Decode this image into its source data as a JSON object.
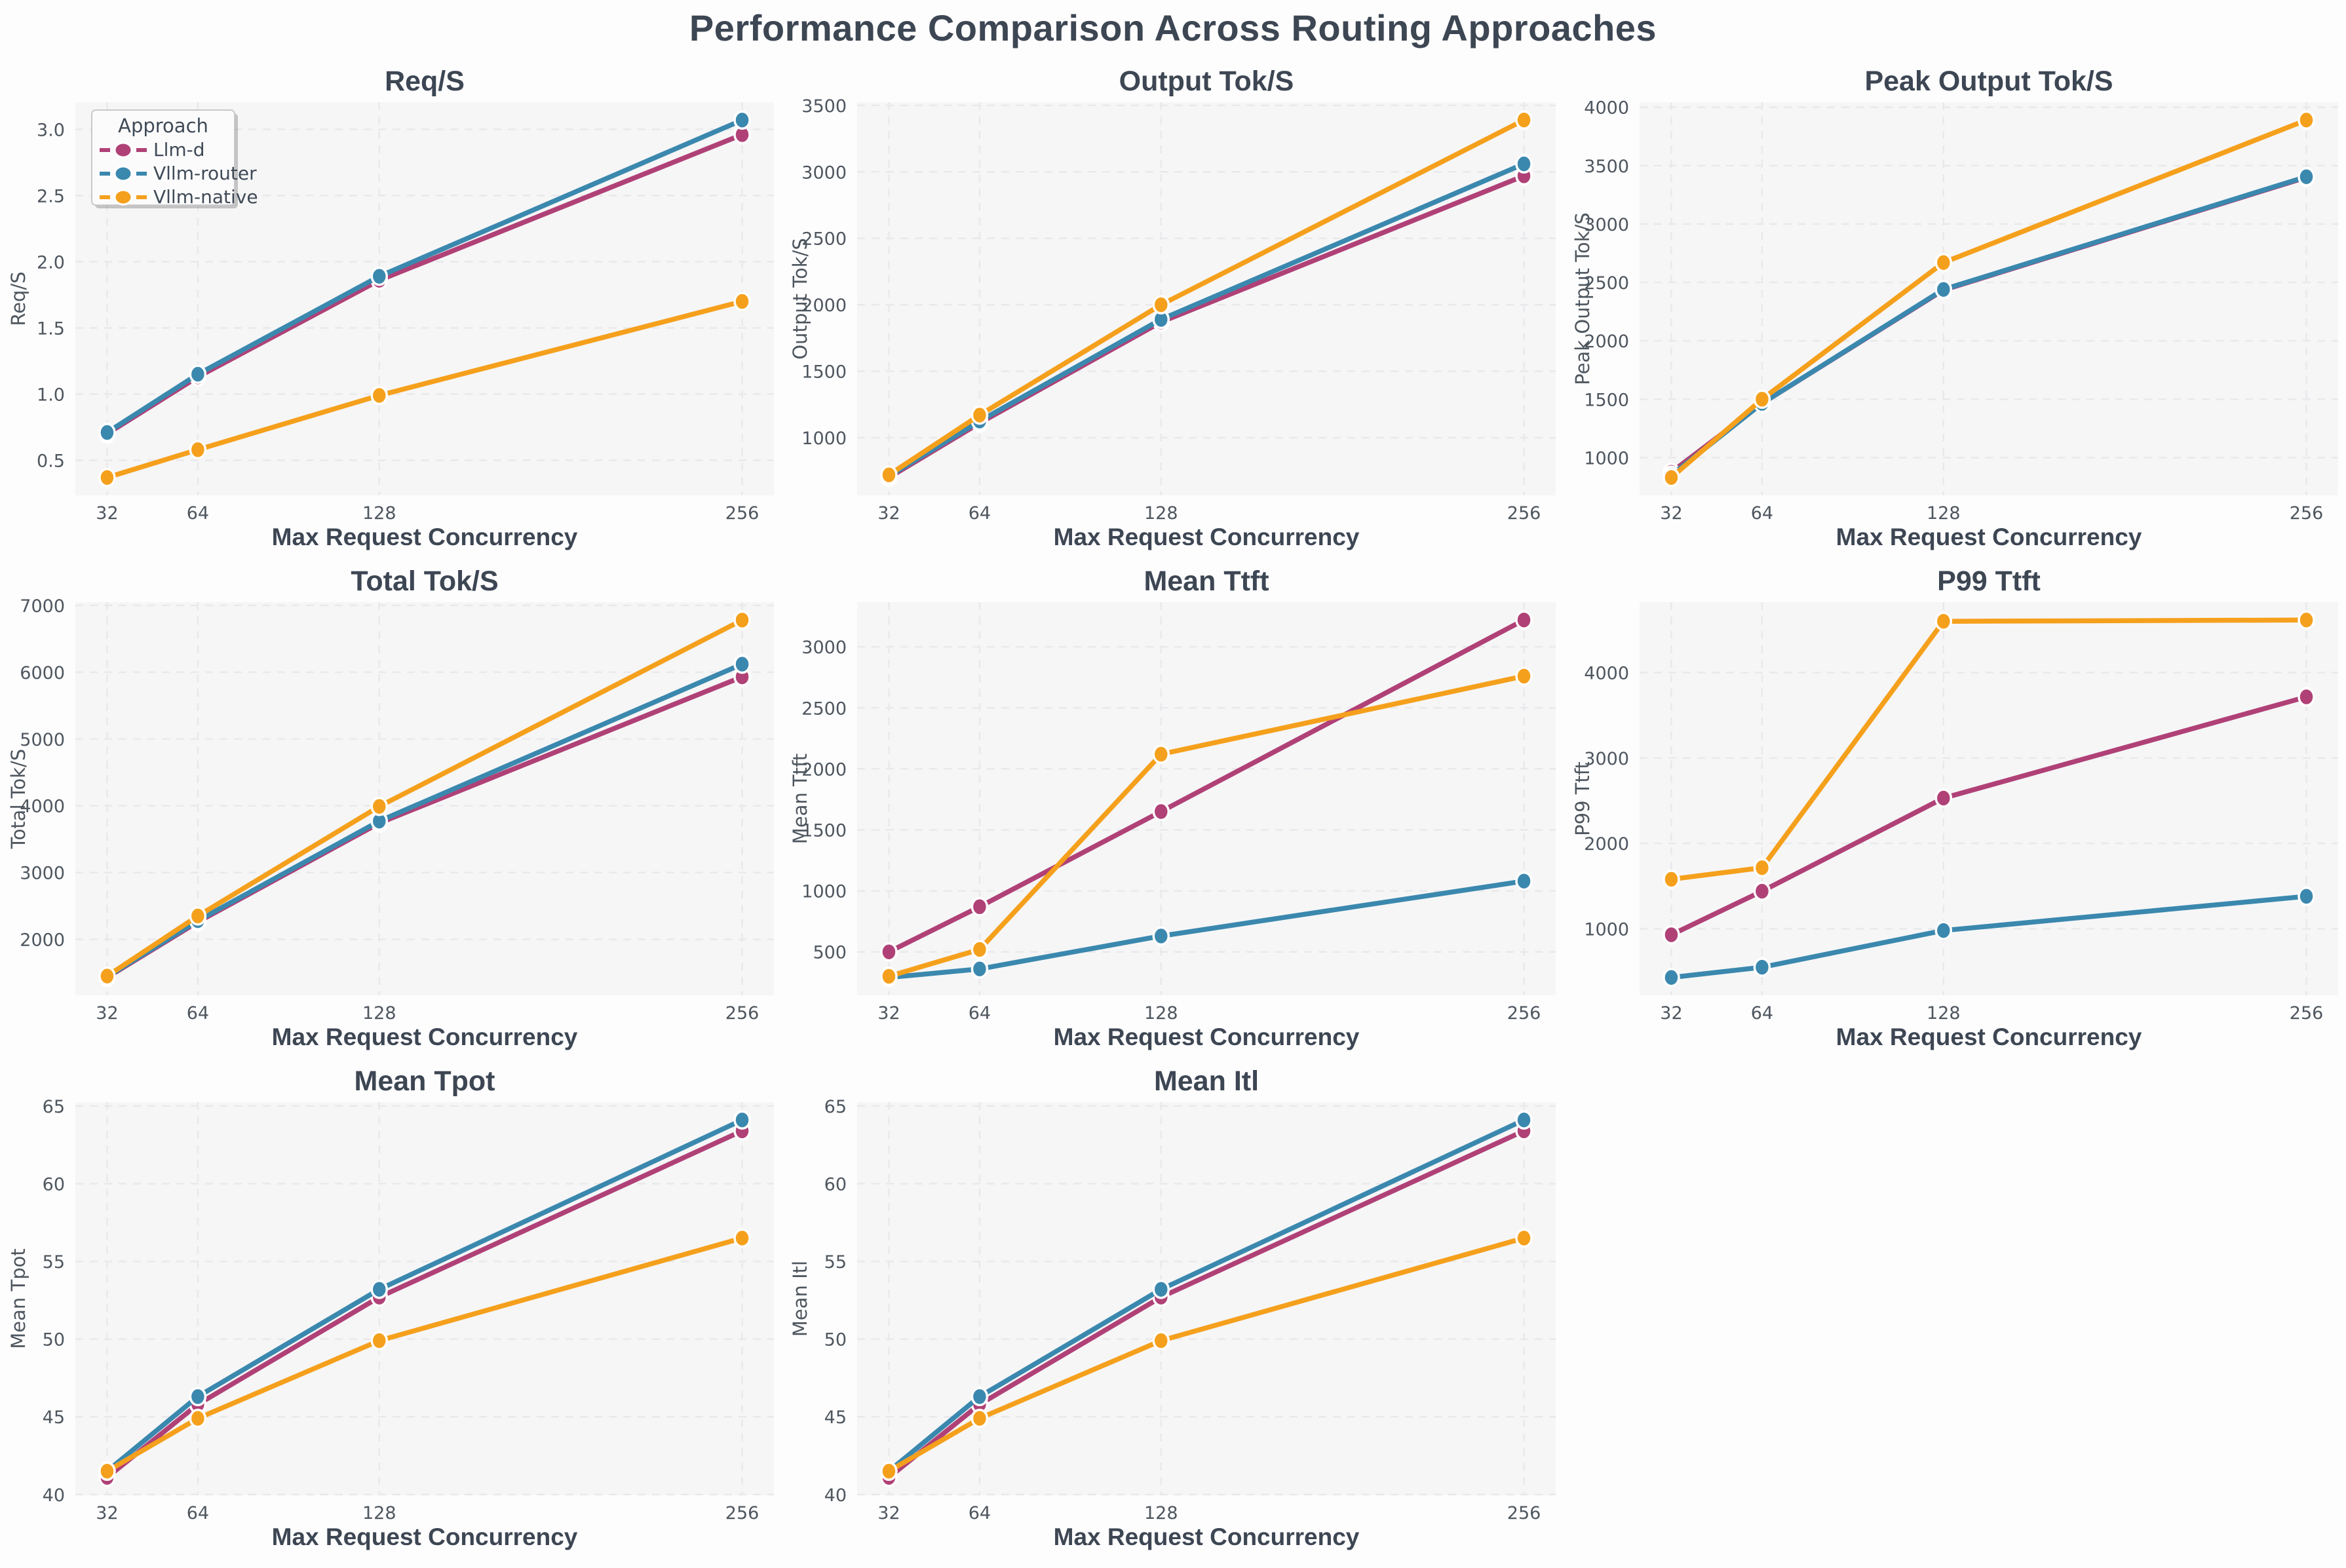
{
  "figure": {
    "title": "Performance Comparison Across Routing Approaches"
  },
  "style": {
    "figure_bg": "#fdfdfe",
    "plot_bg": "#f6f6f7",
    "grid_color": "#e9e9ec",
    "title_text": "#3d4653",
    "tick_text": "#4e565e",
    "legend_bg": "#fbfbfc",
    "legend_border": "#c9c9cc",
    "marker_edge": "#ffffff",
    "series_colors": {
      "llm_d": "#b04177",
      "vllm_router": "#3b88ae",
      "vllm_native": "#f5a01c"
    }
  },
  "legend": {
    "title": "Approach",
    "items": [
      {
        "label": "Llm-d",
        "key": "llm_d"
      },
      {
        "label": "Vllm-router",
        "key": "vllm_router"
      },
      {
        "label": "Vllm-native",
        "key": "vllm_native"
      }
    ]
  },
  "axis": {
    "xlabel": "Max Request Concurrency",
    "x_ticks": [
      32,
      64,
      128,
      256
    ],
    "x_tick_labels": [
      "32",
      "64",
      "128",
      "256"
    ],
    "xlim": [
      20.8,
      267.2
    ]
  },
  "chart_data": [
    {
      "type": "line",
      "title": "Req/S",
      "ylabel": "Req/S",
      "xlabel": "Max Request Concurrency",
      "x": [
        32,
        64,
        128,
        256
      ],
      "ylim": [
        0.235,
        3.205
      ],
      "ytick_values": [
        0.5,
        1.0,
        1.5,
        2.0,
        2.5,
        3.0
      ],
      "ytick_labels": [
        "0.5",
        "1.0",
        "1.5",
        "2.0",
        "2.5",
        "3.0"
      ],
      "legend": true,
      "series": [
        {
          "name": "Llm-d",
          "key": "llm_d",
          "values": [
            0.7,
            1.13,
            1.86,
            2.96
          ]
        },
        {
          "name": "Vllm-router",
          "key": "vllm_router",
          "values": [
            0.71,
            1.15,
            1.89,
            3.07
          ]
        },
        {
          "name": "Vllm-native",
          "key": "vllm_native",
          "values": [
            0.37,
            0.58,
            0.99,
            1.7
          ]
        }
      ]
    },
    {
      "type": "line",
      "title": "Output Tok/S",
      "ylabel": "Output Tok/S",
      "xlabel": "Max Request Concurrency",
      "x": [
        32,
        64,
        128,
        256
      ],
      "ylim": [
        566,
        3524
      ],
      "ytick_values": [
        1000,
        1500,
        2000,
        2500,
        3000,
        3500
      ],
      "ytick_labels": [
        "1000",
        "1500",
        "2000",
        "2500",
        "3000",
        "3500"
      ],
      "legend": false,
      "series": [
        {
          "name": "Llm-d",
          "key": "llm_d",
          "values": [
            700,
            1110,
            1870,
            2970
          ]
        },
        {
          "name": "Vllm-router",
          "key": "vllm_router",
          "values": [
            710,
            1125,
            1890,
            3060
          ]
        },
        {
          "name": "Vllm-native",
          "key": "vllm_native",
          "values": [
            720,
            1170,
            2000,
            3390
          ]
        }
      ]
    },
    {
      "type": "line",
      "title": "Peak Output Tok/S",
      "ylabel": "Peak Output Tok/S",
      "xlabel": "Max Request Concurrency",
      "x": [
        32,
        64,
        128,
        256
      ],
      "ylim": [
        677,
        4043
      ],
      "ytick_values": [
        1000,
        1500,
        2000,
        2500,
        3000,
        3500,
        4000
      ],
      "ytick_labels": [
        "1000",
        "1500",
        "2000",
        "2500",
        "3000",
        "3500",
        "4000"
      ],
      "legend": false,
      "series": [
        {
          "name": "Llm-d",
          "key": "llm_d",
          "values": [
            875,
            1465,
            2435,
            3400
          ]
        },
        {
          "name": "Vllm-router",
          "key": "vllm_router",
          "values": [
            850,
            1465,
            2440,
            3405
          ]
        },
        {
          "name": "Vllm-native",
          "key": "vllm_native",
          "values": [
            830,
            1500,
            2670,
            3890
          ]
        }
      ]
    },
    {
      "type": "line",
      "title": "Total Tok/S",
      "ylabel": "Total Tok/S",
      "xlabel": "Max Request Concurrency",
      "x": [
        32,
        64,
        128,
        256
      ],
      "ylim": [
        1162,
        7048
      ],
      "ytick_values": [
        2000,
        3000,
        4000,
        5000,
        6000,
        7000
      ],
      "ytick_labels": [
        "2000",
        "3000",
        "4000",
        "5000",
        "6000",
        "7000"
      ],
      "legend": false,
      "series": [
        {
          "name": "Llm-d",
          "key": "llm_d",
          "values": [
            1430,
            2260,
            3740,
            5930
          ]
        },
        {
          "name": "Vllm-router",
          "key": "vllm_router",
          "values": [
            1440,
            2280,
            3770,
            6120
          ]
        },
        {
          "name": "Vllm-native",
          "key": "vllm_native",
          "values": [
            1450,
            2350,
            3990,
            6780
          ]
        }
      ]
    },
    {
      "type": "line",
      "title": "Mean Ttft",
      "ylabel": "Mean Ttft",
      "xlabel": "Max Request Concurrency",
      "x": [
        32,
        64,
        128,
        256
      ],
      "ylim": [
        144,
        3366
      ],
      "ytick_values": [
        500,
        1000,
        1500,
        2000,
        2500,
        3000
      ],
      "ytick_labels": [
        "500",
        "1000",
        "1500",
        "2000",
        "2500",
        "3000"
      ],
      "legend": false,
      "series": [
        {
          "name": "Llm-d",
          "key": "llm_d",
          "values": [
            500,
            870,
            1650,
            3220
          ]
        },
        {
          "name": "Vllm-router",
          "key": "vllm_router",
          "values": [
            290,
            360,
            630,
            1080
          ]
        },
        {
          "name": "Vllm-native",
          "key": "vllm_native",
          "values": [
            300,
            520,
            2120,
            2760
          ]
        }
      ]
    },
    {
      "type": "line",
      "title": "P99 Ttft",
      "ylabel": "P99 Ttft",
      "xlabel": "Max Request Concurrency",
      "x": [
        32,
        64,
        128,
        256
      ],
      "ylim": [
        221,
        4824
      ],
      "ytick_values": [
        1000,
        2000,
        3000,
        4000
      ],
      "ytick_labels": [
        "1000",
        "2000",
        "3000",
        "4000"
      ],
      "legend": false,
      "series": [
        {
          "name": "Llm-d",
          "key": "llm_d",
          "values": [
            930,
            1440,
            2530,
            3715
          ]
        },
        {
          "name": "Vllm-router",
          "key": "vllm_router",
          "values": [
            430,
            550,
            980,
            1380
          ]
        },
        {
          "name": "Vllm-native",
          "key": "vllm_native",
          "values": [
            1580,
            1715,
            4600,
            4615
          ]
        }
      ]
    },
    {
      "type": "line",
      "title": "Mean Tpot",
      "ylabel": "Mean Tpot",
      "xlabel": "Max Request Concurrency",
      "x": [
        32,
        64,
        128,
        256
      ],
      "ylim": [
        39.95,
        65.25
      ],
      "ytick_values": [
        40,
        45,
        50,
        55,
        60,
        65
      ],
      "ytick_labels": [
        "40",
        "45",
        "50",
        "55",
        "60",
        "65"
      ],
      "legend": false,
      "series": [
        {
          "name": "Llm-d",
          "key": "llm_d",
          "values": [
            41.1,
            45.8,
            52.7,
            63.4
          ]
        },
        {
          "name": "Vllm-router",
          "key": "vllm_router",
          "values": [
            41.5,
            46.3,
            53.2,
            64.1
          ]
        },
        {
          "name": "Vllm-native",
          "key": "vllm_native",
          "values": [
            41.5,
            44.9,
            49.9,
            56.5
          ]
        }
      ]
    },
    {
      "type": "line",
      "title": "Mean Itl",
      "ylabel": "Mean Itl",
      "xlabel": "Max Request Concurrency",
      "x": [
        32,
        64,
        128,
        256
      ],
      "ylim": [
        39.95,
        65.25
      ],
      "ytick_values": [
        40,
        45,
        50,
        55,
        60,
        65
      ],
      "ytick_labels": [
        "40",
        "45",
        "50",
        "55",
        "60",
        "65"
      ],
      "legend": false,
      "series": [
        {
          "name": "Llm-d",
          "key": "llm_d",
          "values": [
            41.1,
            45.8,
            52.7,
            63.4
          ]
        },
        {
          "name": "Vllm-router",
          "key": "vllm_router",
          "values": [
            41.5,
            46.3,
            53.2,
            64.1
          ]
        },
        {
          "name": "Vllm-native",
          "key": "vllm_native",
          "values": [
            41.5,
            44.9,
            49.9,
            56.5
          ]
        }
      ]
    }
  ]
}
